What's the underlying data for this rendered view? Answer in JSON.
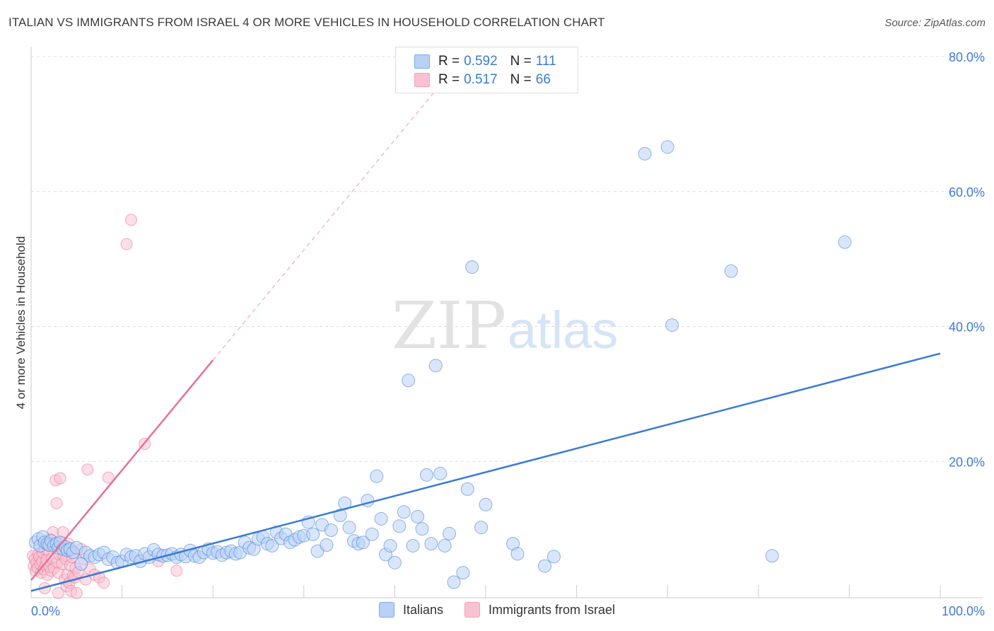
{
  "header": {
    "title": "ITALIAN VS IMMIGRANTS FROM ISRAEL 4 OR MORE VEHICLES IN HOUSEHOLD CORRELATION CHART",
    "source": "Source: ZipAtlas.com"
  },
  "watermark": {
    "zip": "ZIP",
    "atlas": "atlas"
  },
  "legend": {
    "rows": [
      {
        "r_label": "R =",
        "r_value": "0.592",
        "n_label": "N =",
        "n_value": "111",
        "color": "#7aaaf0"
      },
      {
        "r_label": "R =",
        "r_value": "0.517",
        "n_label": "N =",
        "n_value": "66",
        "color": "#f4a0b8"
      }
    ]
  },
  "bottom_legend": [
    {
      "label": "Italians",
      "color": "#b9d1f5"
    },
    {
      "label": "Immigrants from Israel",
      "color": "#f8c2d2"
    }
  ],
  "chart_data": {
    "type": "scatter",
    "title": "ITALIAN VS IMMIGRANTS FROM ISRAEL 4 OR MORE VEHICLES IN HOUSEHOLD CORRELATION CHART",
    "xlabel": "",
    "ylabel": "4 or more Vehicles in Household",
    "xlim": [
      0,
      100
    ],
    "ylim": [
      0,
      80
    ],
    "x_tick_labels": [
      "0.0%",
      "100.0%"
    ],
    "y_ticks": [
      20,
      40,
      60,
      80
    ],
    "y_tick_labels": [
      "20.0%",
      "40.0%",
      "60.0%",
      "80.0%"
    ],
    "grid": true,
    "legend_position": "top-center",
    "series": [
      {
        "name": "Italians",
        "color": "#3a7bd5",
        "fill": "#b9d1f5",
        "trend": {
          "x": [
            0,
            100
          ],
          "y": [
            0.8,
            36.0
          ]
        },
        "points": [
          [
            0.5,
            8.0
          ],
          [
            0.8,
            8.5
          ],
          [
            1.0,
            7.5
          ],
          [
            1.3,
            8.8
          ],
          [
            1.5,
            8.0
          ],
          [
            1.8,
            7.8
          ],
          [
            2.0,
            7.6
          ],
          [
            2.2,
            8.2
          ],
          [
            2.5,
            7.5
          ],
          [
            2.8,
            7.8
          ],
          [
            3.0,
            7.2
          ],
          [
            3.2,
            8.0
          ],
          [
            3.5,
            7.0
          ],
          [
            3.8,
            7.3
          ],
          [
            4.0,
            6.8
          ],
          [
            4.3,
            7.0
          ],
          [
            4.6,
            6.5
          ],
          [
            5.0,
            7.2
          ],
          [
            5.5,
            4.8
          ],
          [
            6.0,
            6.5
          ],
          [
            6.5,
            6.0
          ],
          [
            7.0,
            5.8
          ],
          [
            7.5,
            6.2
          ],
          [
            8.0,
            6.5
          ],
          [
            8.5,
            5.5
          ],
          [
            9.0,
            5.8
          ],
          [
            9.5,
            5.0
          ],
          [
            10.0,
            5.2
          ],
          [
            10.5,
            6.2
          ],
          [
            11.0,
            5.8
          ],
          [
            11.5,
            6.0
          ],
          [
            12.0,
            5.2
          ],
          [
            12.5,
            6.3
          ],
          [
            13.0,
            5.8
          ],
          [
            13.5,
            6.9
          ],
          [
            14.0,
            6.2
          ],
          [
            14.5,
            6.0
          ],
          [
            15.0,
            6.1
          ],
          [
            15.5,
            6.3
          ],
          [
            16.0,
            5.8
          ],
          [
            16.5,
            6.2
          ],
          [
            17.0,
            5.9
          ],
          [
            17.5,
            6.8
          ],
          [
            18.0,
            6.0
          ],
          [
            18.5,
            5.8
          ],
          [
            19.0,
            6.5
          ],
          [
            19.5,
            7.0
          ],
          [
            20.0,
            6.4
          ],
          [
            20.5,
            6.6
          ],
          [
            21.0,
            6.1
          ],
          [
            21.5,
            6.5
          ],
          [
            22.0,
            6.7
          ],
          [
            22.5,
            6.3
          ],
          [
            23.0,
            6.5
          ],
          [
            23.5,
            8.0
          ],
          [
            24.0,
            7.2
          ],
          [
            24.5,
            7.0
          ],
          [
            25.0,
            8.5
          ],
          [
            25.5,
            8.8
          ],
          [
            26.0,
            7.8
          ],
          [
            26.5,
            7.5
          ],
          [
            27.0,
            9.5
          ],
          [
            27.5,
            8.6
          ],
          [
            28.0,
            9.2
          ],
          [
            28.5,
            8.0
          ],
          [
            29.0,
            8.4
          ],
          [
            29.5,
            8.8
          ],
          [
            30.0,
            9.0
          ],
          [
            30.5,
            11.0
          ],
          [
            31.0,
            9.2
          ],
          [
            31.5,
            6.7
          ],
          [
            32.0,
            10.6
          ],
          [
            32.5,
            7.6
          ],
          [
            33.0,
            9.8
          ],
          [
            34.0,
            12.0
          ],
          [
            34.5,
            13.8
          ],
          [
            35.0,
            10.2
          ],
          [
            35.5,
            8.2
          ],
          [
            36.0,
            7.8
          ],
          [
            36.5,
            8.0
          ],
          [
            37.0,
            14.2
          ],
          [
            37.5,
            9.2
          ],
          [
            38.0,
            17.8
          ],
          [
            38.5,
            11.5
          ],
          [
            39.0,
            6.2
          ],
          [
            39.5,
            7.5
          ],
          [
            40.0,
            5.0
          ],
          [
            40.5,
            10.4
          ],
          [
            41.0,
            12.5
          ],
          [
            41.5,
            32.0
          ],
          [
            42.0,
            7.5
          ],
          [
            42.5,
            11.8
          ],
          [
            43.0,
            10.0
          ],
          [
            43.5,
            18.0
          ],
          [
            44.0,
            7.8
          ],
          [
            44.5,
            34.2
          ],
          [
            45.0,
            18.2
          ],
          [
            45.5,
            7.5
          ],
          [
            46.0,
            9.3
          ],
          [
            46.5,
            2.1
          ],
          [
            47.5,
            3.5
          ],
          [
            48.0,
            15.9
          ],
          [
            48.5,
            48.8
          ],
          [
            49.5,
            10.2
          ],
          [
            50.0,
            13.6
          ],
          [
            53.0,
            7.8
          ],
          [
            53.5,
            6.3
          ],
          [
            56.5,
            4.5
          ],
          [
            57.5,
            5.9
          ],
          [
            67.5,
            65.6
          ],
          [
            70.0,
            66.6
          ],
          [
            70.5,
            40.2
          ],
          [
            77.0,
            48.2
          ],
          [
            81.5,
            6.0
          ],
          [
            89.5,
            52.5
          ]
        ]
      },
      {
        "name": "Immigrants from Israel",
        "color": "#e8709a",
        "fill": "#f8c2d2",
        "trend": {
          "x": [
            0,
            20
          ],
          "y": [
            2.4,
            35.0
          ]
        },
        "trend_extended": {
          "x": [
            20,
            44.5
          ],
          "y": [
            35.0,
            75.0
          ]
        },
        "points": [
          [
            0.2,
            6.0
          ],
          [
            0.3,
            4.5
          ],
          [
            0.4,
            5.5
          ],
          [
            0.5,
            3.8
          ],
          [
            0.6,
            5.0
          ],
          [
            0.7,
            4.2
          ],
          [
            0.8,
            6.2
          ],
          [
            0.9,
            5.8
          ],
          [
            1.0,
            4.8
          ],
          [
            1.1,
            3.5
          ],
          [
            1.2,
            5.2
          ],
          [
            1.3,
            6.5
          ],
          [
            1.4,
            4.0
          ],
          [
            1.5,
            7.0
          ],
          [
            1.6,
            4.6
          ],
          [
            1.7,
            5.4
          ],
          [
            1.8,
            3.2
          ],
          [
            1.9,
            6.8
          ],
          [
            2.0,
            4.4
          ],
          [
            2.1,
            8.5
          ],
          [
            2.2,
            3.8
          ],
          [
            2.3,
            5.6
          ],
          [
            2.4,
            9.5
          ],
          [
            2.5,
            4.2
          ],
          [
            2.6,
            7.5
          ],
          [
            2.7,
            17.2
          ],
          [
            2.8,
            13.8
          ],
          [
            2.9,
            5.0
          ],
          [
            3.0,
            3.5
          ],
          [
            3.1,
            6.2
          ],
          [
            3.2,
            17.5
          ],
          [
            3.3,
            8.0
          ],
          [
            3.4,
            4.8
          ],
          [
            3.5,
            9.5
          ],
          [
            3.6,
            6.0
          ],
          [
            3.7,
            2.5
          ],
          [
            3.8,
            5.5
          ],
          [
            3.9,
            1.5
          ],
          [
            4.0,
            3.2
          ],
          [
            4.1,
            7.8
          ],
          [
            4.2,
            2.0
          ],
          [
            4.3,
            4.6
          ],
          [
            4.4,
            0.8
          ],
          [
            4.5,
            5.8
          ],
          [
            4.6,
            3.0
          ],
          [
            4.7,
            6.5
          ],
          [
            4.8,
            2.8
          ],
          [
            4.9,
            4.2
          ],
          [
            5.0,
            0.5
          ],
          [
            5.2,
            3.6
          ],
          [
            5.5,
            7.0
          ],
          [
            5.8,
            5.5
          ],
          [
            6.0,
            2.5
          ],
          [
            6.2,
            18.8
          ],
          [
            6.5,
            4.0
          ],
          [
            7.0,
            3.2
          ],
          [
            7.5,
            2.8
          ],
          [
            8.0,
            2.0
          ],
          [
            8.5,
            17.6
          ],
          [
            10.5,
            52.2
          ],
          [
            11.0,
            55.8
          ],
          [
            12.5,
            22.6
          ],
          [
            14.0,
            5.2
          ],
          [
            16.0,
            3.8
          ],
          [
            1.5,
            1.2
          ],
          [
            3.0,
            0.5
          ]
        ]
      }
    ]
  }
}
